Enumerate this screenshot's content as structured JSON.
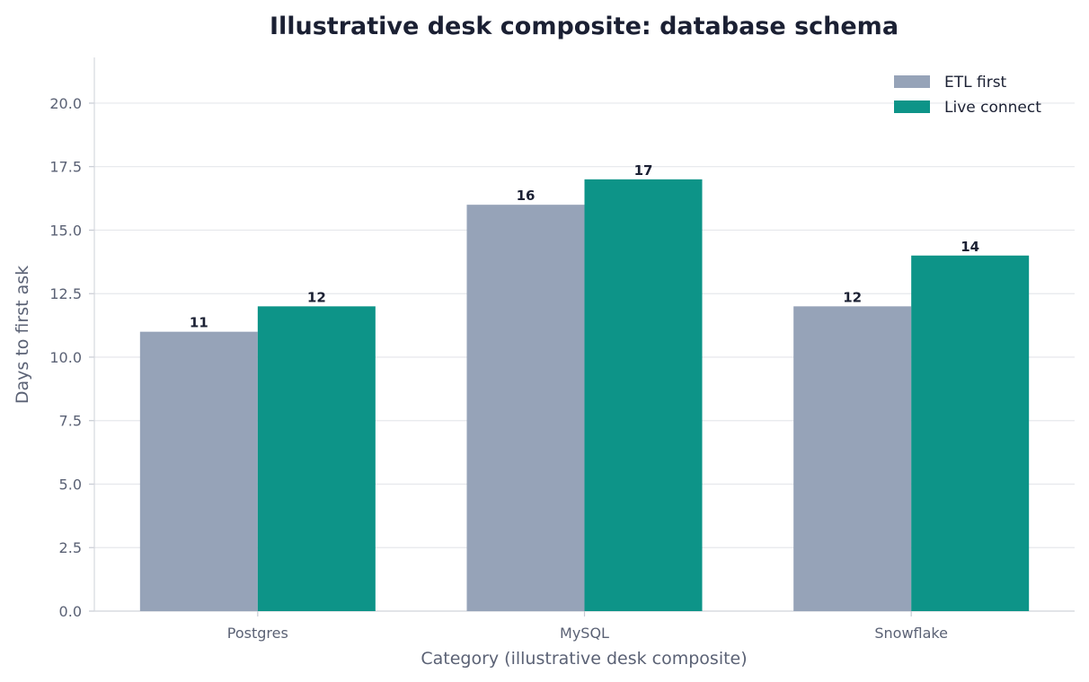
{
  "chart_data": {
    "type": "bar",
    "title": "Illustrative desk composite: database schema",
    "xlabel": "Category (illustrative desk composite)",
    "ylabel": "Days to first ask",
    "categories": [
      "Postgres",
      "MySQL",
      "Snowflake"
    ],
    "series": [
      {
        "name": "ETL first",
        "values": [
          11,
          16,
          12
        ],
        "color": "#96a3b8"
      },
      {
        "name": "Live connect",
        "values": [
          12,
          17,
          14
        ],
        "color": "#0d9488"
      }
    ],
    "ylim": [
      0,
      21.8
    ],
    "yticks": [
      "0.0",
      "2.5",
      "5.0",
      "7.5",
      "10.0",
      "12.5",
      "15.0",
      "17.5",
      "20.0"
    ],
    "grid": "horizontal",
    "legend": "top-right",
    "data_labels": true
  }
}
